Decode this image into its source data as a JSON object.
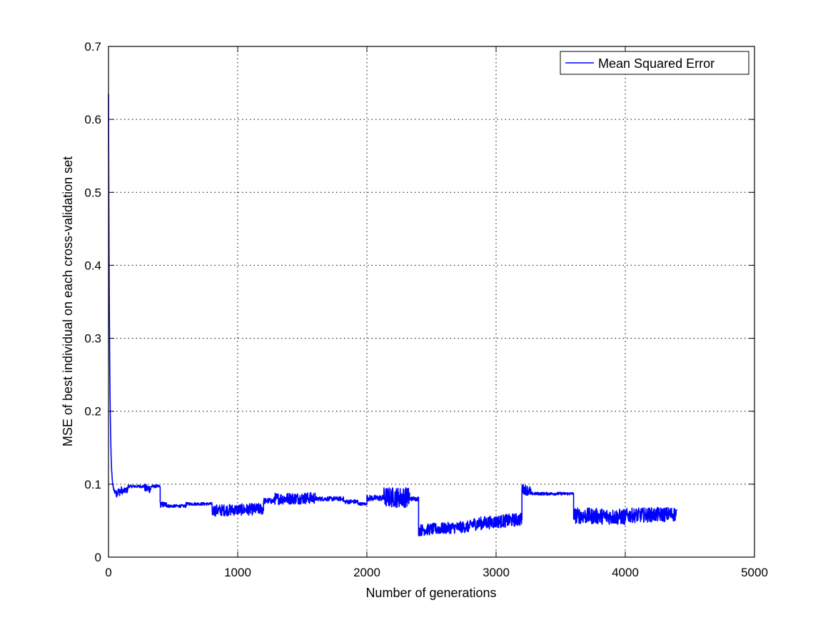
{
  "chart_data": {
    "type": "line",
    "title": "",
    "xlabel": "Number of generations",
    "ylabel": "MSE of best individual on each cross-validation set",
    "xlim": [
      0,
      5000
    ],
    "ylim": [
      0,
      0.7
    ],
    "xticks": [
      0,
      1000,
      2000,
      3000,
      4000,
      5000
    ],
    "xtick_labels": [
      "0",
      "1000",
      "2000",
      "3000",
      "4000",
      "5000"
    ],
    "yticks": [
      0,
      0.1,
      0.2,
      0.3,
      0.4,
      0.5,
      0.6,
      0.7
    ],
    "ytick_labels": [
      "0",
      "0.1",
      "0.2",
      "0.3",
      "0.4",
      "0.5",
      "0.6",
      "0.7"
    ],
    "grid": true,
    "legend_position": "top-right",
    "series": [
      {
        "name": "Mean Squared Error",
        "color": "#0000ff",
        "segments": [
          {
            "x0": 0,
            "x1": 60,
            "start": 0.635,
            "end": 0.088,
            "noise": 0.006
          },
          {
            "x0": 60,
            "x1": 100,
            "start": 0.088,
            "end": 0.091,
            "noise": 0.006
          },
          {
            "x0": 100,
            "x1": 150,
            "start": 0.09,
            "end": 0.092,
            "noise": 0.004
          },
          {
            "x0": 150,
            "x1": 280,
            "start": 0.097,
            "end": 0.097,
            "noise": 0.002
          },
          {
            "x0": 280,
            "x1": 330,
            "start": 0.094,
            "end": 0.094,
            "noise": 0.006
          },
          {
            "x0": 330,
            "x1": 400,
            "start": 0.097,
            "end": 0.097,
            "noise": 0.002
          },
          {
            "x0": 400,
            "x1": 460,
            "start": 0.072,
            "end": 0.072,
            "noise": 0.004
          },
          {
            "x0": 460,
            "x1": 600,
            "start": 0.07,
            "end": 0.07,
            "noise": 0.002
          },
          {
            "x0": 600,
            "x1": 800,
            "start": 0.073,
            "end": 0.073,
            "noise": 0.002
          },
          {
            "x0": 800,
            "x1": 1200,
            "start": 0.064,
            "end": 0.066,
            "noise": 0.008
          },
          {
            "x0": 1200,
            "x1": 1280,
            "start": 0.077,
            "end": 0.077,
            "noise": 0.004
          },
          {
            "x0": 1280,
            "x1": 1600,
            "start": 0.08,
            "end": 0.081,
            "noise": 0.008
          },
          {
            "x0": 1600,
            "x1": 1820,
            "start": 0.08,
            "end": 0.08,
            "noise": 0.003
          },
          {
            "x0": 1820,
            "x1": 1930,
            "start": 0.076,
            "end": 0.076,
            "noise": 0.003
          },
          {
            "x0": 1930,
            "x1": 2000,
            "start": 0.073,
            "end": 0.073,
            "noise": 0.002
          },
          {
            "x0": 2000,
            "x1": 2130,
            "start": 0.081,
            "end": 0.081,
            "noise": 0.004
          },
          {
            "x0": 2130,
            "x1": 2330,
            "start": 0.082,
            "end": 0.082,
            "noise": 0.014
          },
          {
            "x0": 2330,
            "x1": 2400,
            "start": 0.08,
            "end": 0.08,
            "noise": 0.003
          },
          {
            "x0": 2400,
            "x1": 2800,
            "start": 0.037,
            "end": 0.042,
            "noise": 0.008
          },
          {
            "x0": 2800,
            "x1": 3200,
            "start": 0.045,
            "end": 0.052,
            "noise": 0.009
          },
          {
            "x0": 3200,
            "x1": 3270,
            "start": 0.094,
            "end": 0.09,
            "noise": 0.007
          },
          {
            "x0": 3270,
            "x1": 3600,
            "start": 0.087,
            "end": 0.087,
            "noise": 0.002
          },
          {
            "x0": 3600,
            "x1": 4000,
            "start": 0.057,
            "end": 0.055,
            "noise": 0.011
          },
          {
            "x0": 4000,
            "x1": 4400,
            "start": 0.057,
            "end": 0.059,
            "noise": 0.01
          }
        ]
      }
    ]
  }
}
